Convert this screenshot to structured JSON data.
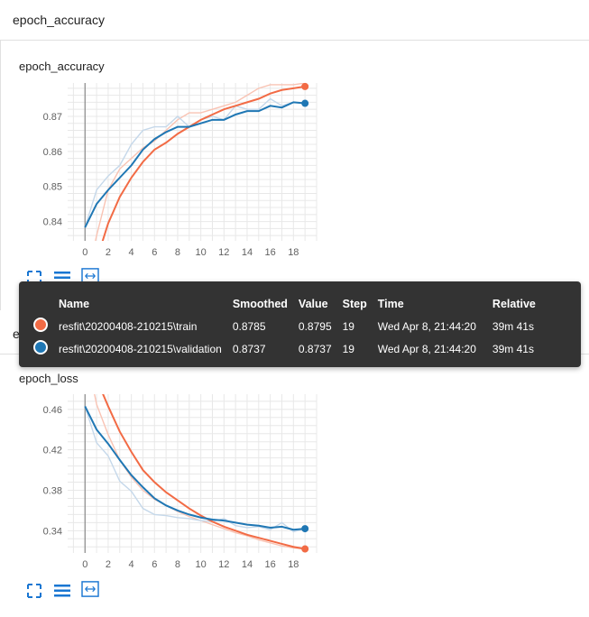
{
  "section": {
    "title": "epoch_accuracy"
  },
  "colors": {
    "train": "#f26b45",
    "validation": "#1f77b4",
    "train_faint": "#f9c3b3",
    "validation_faint": "#c5d8ea",
    "link_blue": "#1976d2"
  },
  "controls": {
    "expand_icon": "expand-icon",
    "list_icon": "list-icon",
    "fit_icon": "fit-domain-icon"
  },
  "chart_data": [
    {
      "type": "line",
      "title": "epoch_accuracy",
      "xlabel": "",
      "ylabel": "",
      "x_ticks": [
        0,
        2,
        4,
        6,
        8,
        10,
        12,
        14,
        16,
        18
      ],
      "y_ticks": [
        0.84,
        0.85,
        0.86,
        0.87
      ],
      "xlim": [
        -1.5,
        20
      ],
      "ylim": [
        0.8345,
        0.8795
      ],
      "grid": true,
      "series": [
        {
          "name": "resfit\\20200408-210215\\train",
          "x": [
            0,
            1,
            2,
            3,
            4,
            5,
            6,
            7,
            8,
            9,
            10,
            11,
            12,
            13,
            14,
            15,
            16,
            17,
            18,
            19
          ],
          "smoothed": [
            0.821,
            0.829,
            0.8395,
            0.847,
            0.8525,
            0.857,
            0.8605,
            0.8625,
            0.865,
            0.867,
            0.869,
            0.8705,
            0.872,
            0.873,
            0.874,
            0.875,
            0.8765,
            0.8775,
            0.878,
            0.8785
          ],
          "values": [
            0.821,
            0.836,
            0.849,
            0.855,
            0.858,
            0.861,
            0.863,
            0.866,
            0.869,
            0.871,
            0.871,
            0.872,
            0.873,
            0.874,
            0.876,
            0.878,
            0.879,
            0.879,
            0.879,
            0.8795
          ]
        },
        {
          "name": "resfit\\20200408-210215\\validation",
          "x": [
            0,
            1,
            2,
            3,
            4,
            5,
            6,
            7,
            8,
            9,
            10,
            11,
            12,
            13,
            14,
            15,
            16,
            17,
            18,
            19
          ],
          "smoothed": [
            0.8383,
            0.845,
            0.849,
            0.8525,
            0.856,
            0.8605,
            0.8635,
            0.8655,
            0.867,
            0.867,
            0.868,
            0.869,
            0.869,
            0.8705,
            0.8715,
            0.8715,
            0.873,
            0.8725,
            0.874,
            0.8737
          ],
          "values": [
            0.8383,
            0.849,
            0.853,
            0.856,
            0.862,
            0.866,
            0.867,
            0.867,
            0.87,
            0.867,
            0.869,
            0.87,
            0.869,
            0.873,
            0.872,
            0.872,
            0.875,
            0.873,
            0.874,
            0.8737
          ]
        }
      ]
    },
    {
      "type": "line",
      "title": "epoch_loss",
      "xlabel": "",
      "ylabel": "",
      "x_ticks": [
        0,
        2,
        4,
        6,
        8,
        10,
        12,
        14,
        16,
        18
      ],
      "y_ticks": [
        0.34,
        0.38,
        0.42,
        0.46
      ],
      "xlim": [
        -1.5,
        20
      ],
      "ylim": [
        0.318,
        0.475
      ],
      "grid": true,
      "series": [
        {
          "name": "resfit\\20200408-210215\\train",
          "x": [
            0,
            1,
            2,
            3,
            4,
            5,
            6,
            7,
            8,
            9,
            10,
            11,
            12,
            13,
            14,
            15,
            16,
            17,
            18,
            19
          ],
          "smoothed": [
            0.52,
            0.49,
            0.463,
            0.438,
            0.418,
            0.4,
            0.388,
            0.378,
            0.37,
            0.362,
            0.355,
            0.349,
            0.344,
            0.34,
            0.336,
            0.333,
            0.33,
            0.327,
            0.324,
            0.322
          ],
          "values": [
            0.52,
            0.465,
            0.435,
            0.41,
            0.393,
            0.38,
            0.371,
            0.365,
            0.359,
            0.354,
            0.35,
            0.346,
            0.342,
            0.338,
            0.335,
            0.331,
            0.328,
            0.325,
            0.323,
            0.322
          ]
        },
        {
          "name": "resfit\\20200408-210215\\validation",
          "x": [
            0,
            1,
            2,
            3,
            4,
            5,
            6,
            7,
            8,
            9,
            10,
            11,
            12,
            13,
            14,
            15,
            16,
            17,
            18,
            19
          ],
          "smoothed": [
            0.463,
            0.44,
            0.426,
            0.41,
            0.395,
            0.383,
            0.372,
            0.365,
            0.36,
            0.356,
            0.353,
            0.351,
            0.35,
            0.348,
            0.346,
            0.345,
            0.343,
            0.344,
            0.341,
            0.342
          ],
          "values": [
            0.463,
            0.427,
            0.414,
            0.389,
            0.379,
            0.362,
            0.356,
            0.355,
            0.353,
            0.352,
            0.35,
            0.349,
            0.352,
            0.345,
            0.343,
            0.344,
            0.341,
            0.348,
            0.339,
            0.342
          ]
        }
      ]
    }
  ],
  "tooltip": {
    "headers": {
      "name": "Name",
      "smoothed": "Smoothed",
      "value": "Value",
      "step": "Step",
      "time": "Time",
      "relative": "Relative"
    },
    "rows": [
      {
        "name": "resfit\\20200408-210215\\train",
        "smoothed": "0.8785",
        "value": "0.8795",
        "step": "19",
        "time": "Wed Apr 8, 21:44:20",
        "relative": "39m 41s"
      },
      {
        "name": "resfit\\20200408-210215\\validation",
        "smoothed": "0.8737",
        "value": "0.8737",
        "step": "19",
        "time": "Wed Apr 8, 21:44:20",
        "relative": "39m 41s"
      }
    ]
  },
  "loss_section": {
    "title": "epoch_loss"
  }
}
